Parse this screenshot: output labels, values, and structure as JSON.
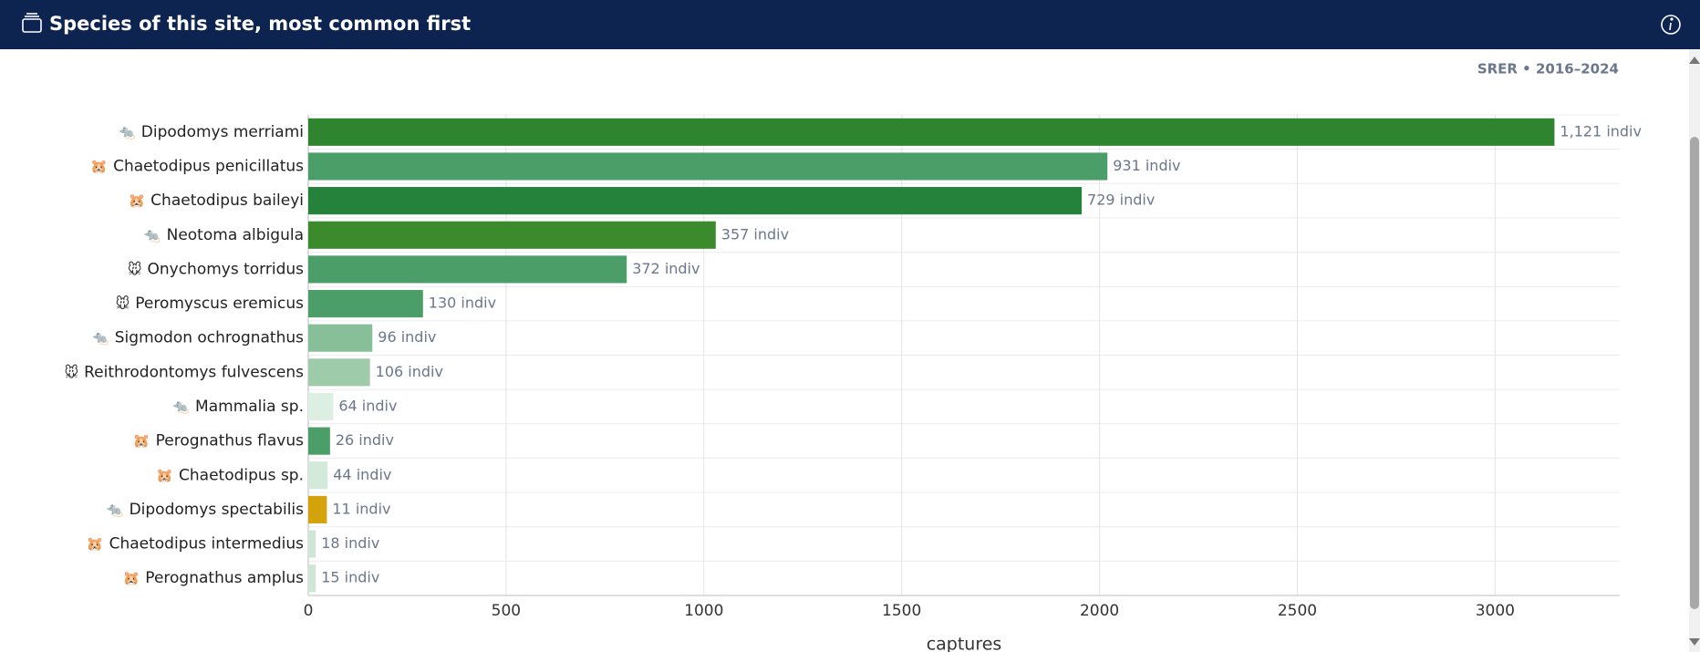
{
  "header": {
    "title": "Species of this site, most common first",
    "subtitle": "SRER • 2016–2024"
  },
  "chart_data": {
    "type": "bar",
    "orientation": "horizontal",
    "categories": [
      "Dipodomys merriami",
      "Chaetodipus penicillatus",
      "Chaetodipus baileyi",
      "Neotoma albigula",
      "Onychomys torridus",
      "Peromyscus eremicus",
      "Sigmodon ochrognathus",
      "Reithrodontomys fulvescens",
      "Mammalia sp.",
      "Perognathus flavus",
      "Chaetodipus sp.",
      "Dipodomys spectabilis",
      "Chaetodipus intermedius",
      "Perognathus amplus"
    ],
    "icons": [
      "🐀",
      "🐹",
      "🐹",
      "🐀",
      "🐭",
      "🐭",
      "🐀",
      "🐭",
      "🐀",
      "🐹",
      "🐹",
      "🐀",
      "🐹",
      "🐹"
    ],
    "values": [
      3150,
      2020,
      1955,
      1030,
      805,
      290,
      162,
      156,
      63,
      55,
      49,
      47,
      19,
      19
    ],
    "bar_labels": [
      "1,121 indiv",
      "931 indiv",
      "729 indiv",
      "357 indiv",
      "372 indiv",
      "130 indiv",
      "96 indiv",
      "106 indiv",
      "64 indiv",
      "26 indiv",
      "44 indiv",
      "11 indiv",
      "18 indiv",
      "15 indiv"
    ],
    "colors": [
      "#2f852f",
      "#4c9e68",
      "#24823a",
      "#3b8a2c",
      "#4c9e68",
      "#4c9e68",
      "#87bf98",
      "#9ecbaa",
      "#dcefe2",
      "#4c9e68",
      "#d3e9da",
      "#d4a20a",
      "#cfe6d6",
      "#cfe6d6"
    ],
    "xlabel": "captures",
    "xlim": [
      0,
      3315
    ],
    "xticks": [
      0,
      500,
      1000,
      1500,
      2000,
      2500,
      3000
    ],
    "grid": true
  }
}
